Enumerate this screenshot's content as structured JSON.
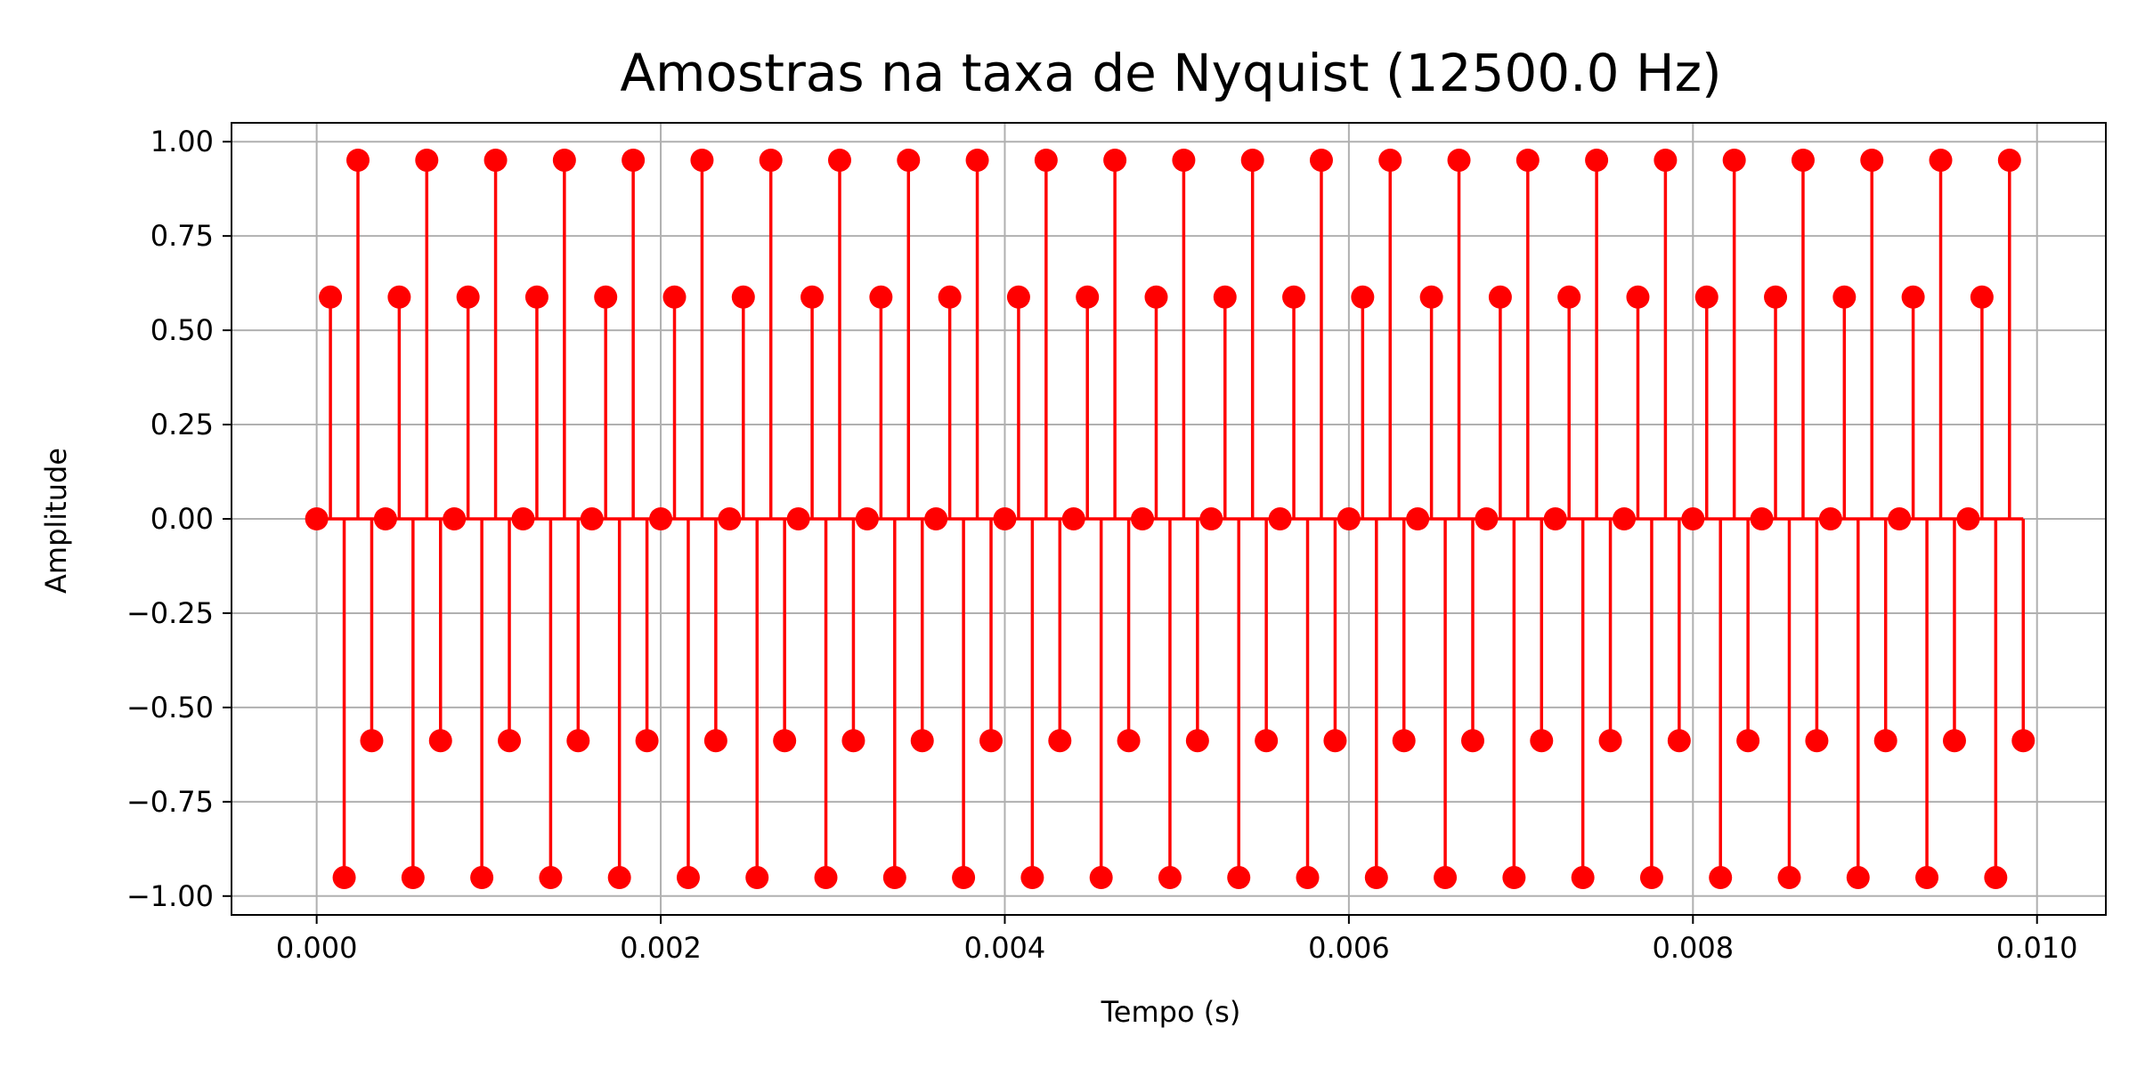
{
  "chart_data": {
    "type": "stem",
    "title": "Amostras na taxa de Nyquist (12500.0 Hz)",
    "xlabel": "Tempo (s)",
    "ylabel": "Amplitude",
    "xlim": [
      -0.000495,
      0.0104
    ],
    "ylim": [
      -1.05,
      1.05
    ],
    "grid": true,
    "color": "#ff0000",
    "sample_rate_hz": 12500.0,
    "x_ticks": [
      0.0,
      0.002,
      0.004,
      0.006,
      0.008,
      0.01
    ],
    "x_tick_labels": [
      "0.000",
      "0.002",
      "0.004",
      "0.006",
      "0.008",
      "0.010"
    ],
    "y_ticks": [
      1.0,
      0.75,
      0.5,
      0.25,
      0.0,
      -0.25,
      -0.5,
      -0.75,
      -1.0
    ],
    "y_tick_labels": [
      "1.00",
      "0.75",
      "0.50",
      "0.25",
      "0.00",
      "−0.25",
      "−0.50",
      "−0.75",
      "−1.00"
    ],
    "x": [
      0.0,
      8e-05,
      0.00016,
      0.00024,
      0.00032,
      0.0004,
      0.00048,
      0.00056,
      0.00064,
      0.00072,
      0.0008,
      0.00088,
      0.00096,
      0.00104,
      0.00112,
      0.0012,
      0.00128,
      0.00136,
      0.00144,
      0.00152,
      0.0016,
      0.00168,
      0.00176,
      0.00184,
      0.00192,
      0.002,
      0.00208,
      0.00216,
      0.00224,
      0.00232,
      0.0024,
      0.00248,
      0.00256,
      0.00264,
      0.00272,
      0.0028,
      0.00288,
      0.00296,
      0.00304,
      0.00312,
      0.0032,
      0.00328,
      0.00336,
      0.00344,
      0.00352,
      0.0036,
      0.00368,
      0.00376,
      0.00384,
      0.00392,
      0.004,
      0.00408,
      0.00416,
      0.00424,
      0.00432,
      0.0044,
      0.00448,
      0.00456,
      0.00464,
      0.00472,
      0.0048,
      0.00488,
      0.00496,
      0.00504,
      0.00512,
      0.0052,
      0.00528,
      0.00536,
      0.00544,
      0.00552,
      0.0056,
      0.00568,
      0.00576,
      0.00584,
      0.00592,
      0.006,
      0.00608,
      0.00616,
      0.00624,
      0.00632,
      0.0064,
      0.00648,
      0.00656,
      0.00664,
      0.00672,
      0.0068,
      0.00688,
      0.00696,
      0.00704,
      0.00712,
      0.0072,
      0.00728,
      0.00736,
      0.00744,
      0.00752,
      0.0076,
      0.00768,
      0.00776,
      0.00784,
      0.00792,
      0.008,
      0.00808,
      0.00816,
      0.00824,
      0.00832,
      0.0084,
      0.00848,
      0.00856,
      0.00864,
      0.00872,
      0.0088,
      0.00888,
      0.00896,
      0.00904,
      0.00912,
      0.0092,
      0.00928,
      0.00936,
      0.00944,
      0.00952,
      0.0096,
      0.00968,
      0.00976,
      0.00984,
      0.00992
    ],
    "values": [
      0.0,
      0.588,
      -0.951,
      0.951,
      -0.588,
      0.0,
      0.588,
      -0.951,
      0.951,
      -0.588,
      0.0,
      0.588,
      -0.951,
      0.951,
      -0.588,
      0.0,
      0.588,
      -0.951,
      0.951,
      -0.588,
      0.0,
      0.588,
      -0.951,
      0.951,
      -0.588,
      0.0,
      0.588,
      -0.951,
      0.951,
      -0.588,
      0.0,
      0.588,
      -0.951,
      0.951,
      -0.588,
      0.0,
      0.588,
      -0.951,
      0.951,
      -0.588,
      0.0,
      0.588,
      -0.951,
      0.951,
      -0.588,
      0.0,
      0.588,
      -0.951,
      0.951,
      -0.588,
      0.0,
      0.588,
      -0.951,
      0.951,
      -0.588,
      0.0,
      0.588,
      -0.951,
      0.951,
      -0.588,
      0.0,
      0.588,
      -0.951,
      0.951,
      -0.588,
      0.0,
      0.588,
      -0.951,
      0.951,
      -0.588,
      0.0,
      0.588,
      -0.951,
      0.951,
      -0.588,
      0.0,
      0.588,
      -0.951,
      0.951,
      -0.588,
      0.0,
      0.588,
      -0.951,
      0.951,
      -0.588,
      0.0,
      0.588,
      -0.951,
      0.951,
      -0.588,
      0.0,
      0.588,
      -0.951,
      0.951,
      -0.588,
      0.0,
      0.588,
      -0.951,
      0.951,
      -0.588,
      0.0,
      0.588,
      -0.951,
      0.951,
      -0.588,
      0.0,
      0.588,
      -0.951,
      0.951,
      -0.588,
      0.0,
      0.588,
      -0.951,
      0.951,
      -0.588,
      0.0,
      0.588,
      -0.951,
      0.951,
      -0.588,
      0.0,
      0.588,
      -0.951,
      0.951,
      -0.588
    ]
  }
}
